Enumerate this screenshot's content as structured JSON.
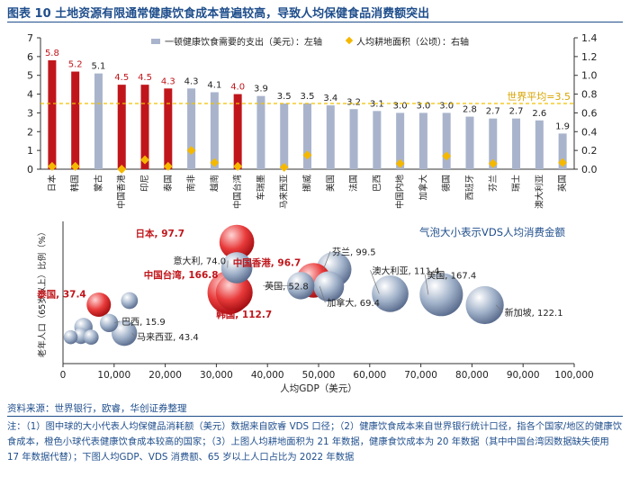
{
  "title": "图表 10  土地资源有限通常健康饮食成本普遍较高，导致人均保健食品消费额突出",
  "source": "资料来源：世界银行，欧睿，华创证券整理",
  "note": "注：（1）图中球的大小代表人均保健品消耗额（美元）数据来自欧睿 VDS 口径；（2）健康饮食成本来自世界银行统计口径，指各个国家/地区的健康饮食成本，橙色小球代表健康饮食成本较高的国家；（3）上图人均耕地面积为 21 年数据，健康食饮成本为 20 年数据（其中中国台湾因数据缺失使用 17 年数据代替）；下图人均GDP、VDS 消费额、65 岁以上人口占比为 2022 年数据",
  "colors": {
    "gray_bar": "#a9b4cc",
    "red_bar": "#c0161b",
    "dot": "#f5b800",
    "avg_line": "#f0c000",
    "red_text": "#c0161b",
    "axis_blue": "#1f4e8c"
  },
  "chart_data": [
    {
      "type": "bar",
      "legend": {
        "bar": "一顿健康饮食需要的支出（美元）：左轴",
        "dot": "人均耕地面积（公顷）：右轴"
      },
      "categories": [
        "日本",
        "韩国",
        "蒙古",
        "中国香港",
        "印尼",
        "泰国",
        "南非",
        "越南",
        "中国台湾",
        "车瑞墨",
        "马来西亚",
        "挪威",
        "美国",
        "法国",
        "巴西",
        "中国内地",
        "加拿大",
        "德国",
        "西班牙",
        "芬兰",
        "瑞士",
        "澳大利亚",
        "英国"
      ],
      "bar_values": [
        5.8,
        5.2,
        5.1,
        4.5,
        4.5,
        4.3,
        4.3,
        4.1,
        4.0,
        3.9,
        3.5,
        3.5,
        3.4,
        3.2,
        3.1,
        3.0,
        3.0,
        3.0,
        2.8,
        2.7,
        2.7,
        2.6,
        1.9
      ],
      "highlight": [
        true,
        true,
        false,
        true,
        true,
        true,
        false,
        false,
        true,
        false,
        false,
        false,
        false,
        false,
        false,
        false,
        false,
        false,
        false,
        false,
        false,
        false,
        false
      ],
      "bar_labels": [
        "5.8",
        "5.2",
        "5.1",
        "4.5",
        "4.5",
        "4.3",
        "4.3",
        "4.1",
        "4.0",
        "3.9",
        "3.5",
        "3.5",
        "3.4",
        "3.2",
        "3.1",
        "3.0",
        "3.0",
        "3.0",
        "2.8",
        "2.7",
        "2.7",
        "2.6",
        "1.9"
      ],
      "dot_values": [
        0.03,
        0.03,
        null,
        0.0,
        0.1,
        0.03,
        0.2,
        0.07,
        0.03,
        null,
        0.02,
        0.15,
        null,
        null,
        null,
        0.06,
        null,
        0.14,
        null,
        0.06,
        null,
        null,
        0.07
      ],
      "left_axis": {
        "min": 0,
        "max": 7,
        "ticks": [
          "0",
          "1",
          "2",
          "3",
          "4",
          "5",
          "6",
          "7"
        ]
      },
      "right_axis": {
        "min": 0,
        "max": 1.4,
        "ticks": [
          "0.0",
          "0.2",
          "0.4",
          "0.6",
          "0.8",
          "1.0",
          "1.2",
          "1.4"
        ]
      },
      "average": {
        "value": 3.5,
        "label": "世界平均=3.5"
      }
    },
    {
      "type": "scatter",
      "legend_note": "气泡大小表示VDS人均消费金额",
      "xlabel": "人均GDP（美元）",
      "ylabel": "老年人口（65岁以上）比例（%）",
      "x_axis": {
        "min": 0,
        "max": 100000,
        "ticks": [
          "0",
          "10,000",
          "20,000",
          "30,000",
          "40,000",
          "50,000",
          "60,000",
          "70,000",
          "80,000",
          "90,000",
          "100,000"
        ]
      },
      "y_axis": {
        "min": 0,
        "max": 35
      },
      "points": [
        {
          "label": "日本, 97.7",
          "x": 34000,
          "y": 29.9,
          "size": 97.7,
          "red": true
        },
        {
          "label": "意大利, 74.0",
          "x": 34000,
          "y": 23.6,
          "size": 74.0,
          "red": false
        },
        {
          "label": "中国香港, 96.7",
          "x": 49000,
          "y": 20.5,
          "size": 96.7,
          "red": true
        },
        {
          "label": "芬兰, 99.5",
          "x": 53000,
          "y": 23.2,
          "size": 99.5,
          "red": false
        },
        {
          "label": "中国台湾, 166.8",
          "x": 32500,
          "y": 17.5,
          "size": 166.8,
          "red": true
        },
        {
          "label": "韩国, 112.7",
          "x": 33500,
          "y": 17.5,
          "size": 112.7,
          "red": true
        },
        {
          "label": "英国, 52.8",
          "x": 46500,
          "y": 19.2,
          "size": 52.8,
          "red": false
        },
        {
          "label": "加拿大, 69.4",
          "x": 52000,
          "y": 19.0,
          "size": 69.4,
          "red": false
        },
        {
          "label": "澳大利亚, 111.4",
          "x": 64000,
          "y": 17.2,
          "size": 111.4,
          "red": false
        },
        {
          "label": "美国, 167.4",
          "x": 74000,
          "y": 17.0,
          "size": 167.4,
          "red": false
        },
        {
          "label": "新加坡, 122.1",
          "x": 82500,
          "y": 14.4,
          "size": 122.1,
          "red": false
        },
        {
          "label": "泰国, 37.4",
          "x": 7000,
          "y": 14.5,
          "size": 37.4,
          "red": true
        },
        {
          "label": "巴西, 15.9",
          "x": 9000,
          "y": 10.0,
          "size": 15.9,
          "red": false
        },
        {
          "label": "马来西亚, 43.4",
          "x": 12000,
          "y": 7.5,
          "size": 43.4,
          "red": false
        },
        {
          "label": "",
          "x": 13000,
          "y": 15.5,
          "size": 12.0,
          "red": false
        },
        {
          "label": "",
          "x": 4000,
          "y": 9.0,
          "size": 16.0,
          "red": false
        },
        {
          "label": "",
          "x": 3500,
          "y": 6.8,
          "size": 10.0,
          "red": false
        },
        {
          "label": "",
          "x": 1500,
          "y": 6.5,
          "size": 6.0,
          "red": false
        },
        {
          "label": "",
          "x": 5500,
          "y": 6.5,
          "size": 8.0,
          "red": false
        }
      ]
    }
  ]
}
